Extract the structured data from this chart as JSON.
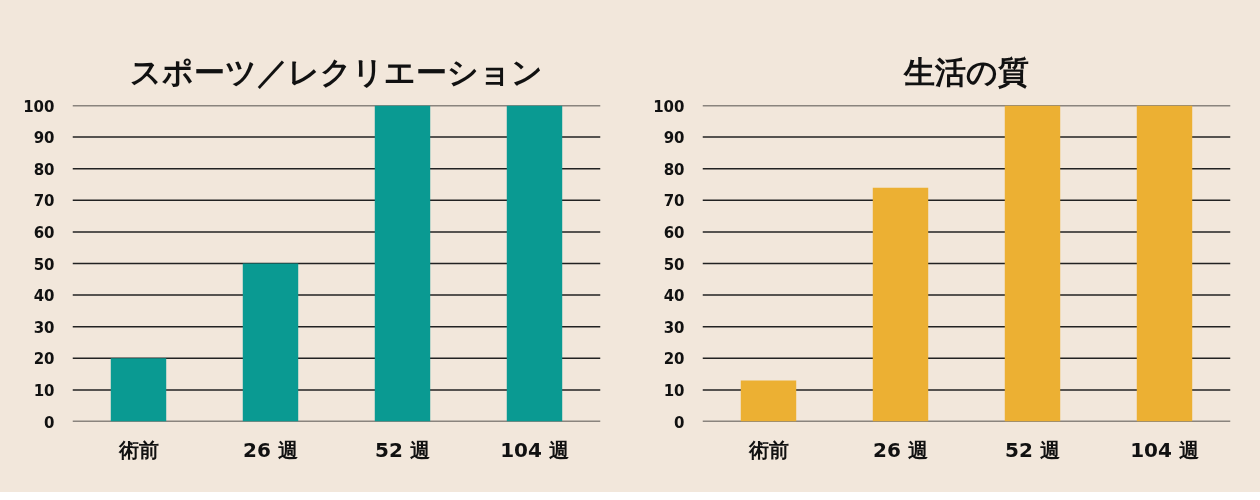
{
  "chart_data": [
    {
      "type": "bar",
      "title": "スポーツ／レクリエーション",
      "categories": [
        "術前",
        "26 週",
        "52 週",
        "104 週"
      ],
      "values": [
        20,
        50,
        100,
        100
      ],
      "color": "#0a9a92",
      "ylim": [
        0,
        100
      ],
      "yticks": [
        0,
        10,
        20,
        30,
        40,
        50,
        60,
        70,
        80,
        90,
        100
      ],
      "grid": "y"
    },
    {
      "type": "bar",
      "title": "生活の質",
      "categories": [
        "術前",
        "26 週",
        "52 週",
        "104 週"
      ],
      "values": [
        13,
        74,
        100,
        100
      ],
      "color": "#ecb033",
      "ylim": [
        0,
        100
      ],
      "yticks": [
        0,
        10,
        20,
        30,
        40,
        50,
        60,
        70,
        80,
        90,
        100
      ],
      "grid": "y"
    }
  ]
}
